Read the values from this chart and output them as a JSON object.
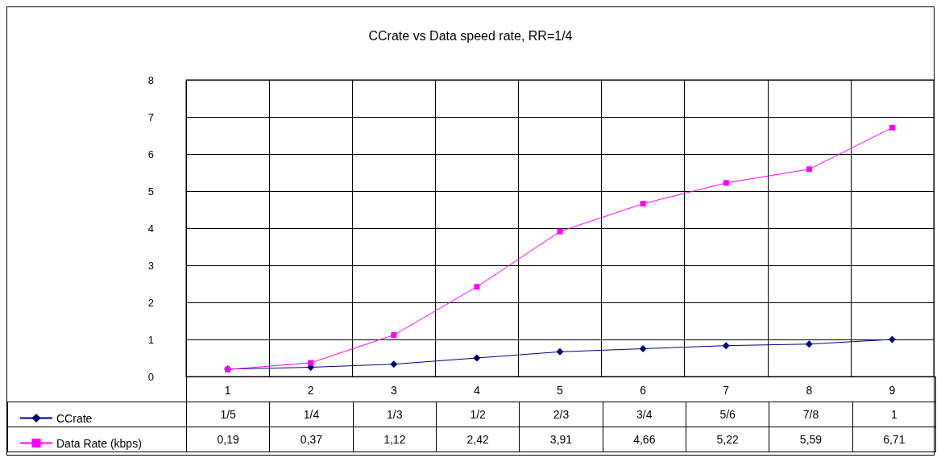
{
  "chart_data": {
    "type": "line",
    "title": "CCrate vs Data speed rate, RR=1/4",
    "categories": [
      "1",
      "2",
      "3",
      "4",
      "5",
      "6",
      "7",
      "8",
      "9"
    ],
    "series": [
      {
        "name": "CCrate",
        "color": "#000080",
        "marker": "diamond",
        "values": [
          0.2,
          0.25,
          0.333,
          0.5,
          0.667,
          0.75,
          0.833,
          0.875,
          1
        ],
        "value_labels": [
          "1/5",
          "1/4",
          "1/3",
          "1/2",
          "2/3",
          "3/4",
          "5/6",
          "7/8",
          "1"
        ]
      },
      {
        "name": "Data Rate (kbps)",
        "color": "#ff00ff",
        "marker": "square",
        "values": [
          0.19,
          0.37,
          1.12,
          2.42,
          3.91,
          4.66,
          5.22,
          5.59,
          6.71
        ],
        "value_labels": [
          "0,19",
          "0,37",
          "1,12",
          "2,42",
          "3,91",
          "4,66",
          "5,22",
          "5,59",
          "6,71"
        ]
      }
    ],
    "ylim": [
      0,
      8
    ],
    "yticks": [
      0,
      1,
      2,
      3,
      4,
      5,
      6,
      7,
      8
    ],
    "grid": true,
    "legend": "bottom left",
    "line_style": "solid"
  }
}
